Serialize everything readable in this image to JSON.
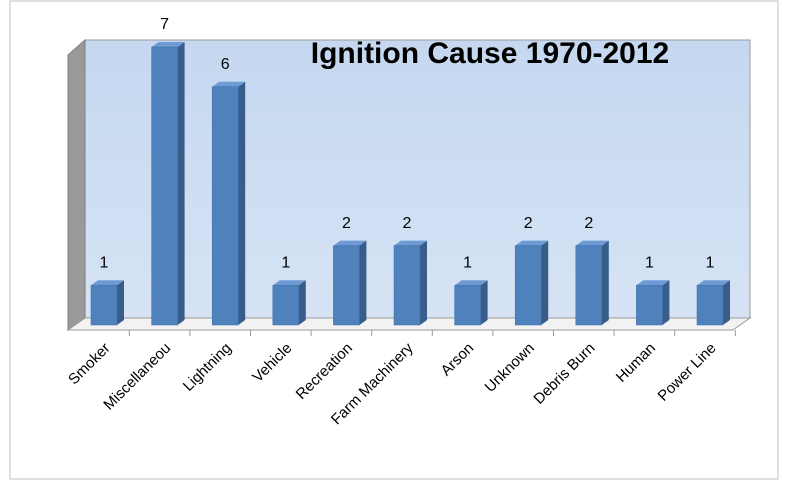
{
  "chart_data": {
    "type": "bar",
    "title": "Ignition Cause 1970-2012",
    "categories": [
      "Smoker",
      "Miscellaneou",
      "Lightning",
      "Vehicle",
      "Recreation",
      "Farm Machinery",
      "Arson",
      "Unknown",
      "Debris Burn",
      "Human",
      "Power Line"
    ],
    "values": [
      1,
      7,
      6,
      1,
      2,
      2,
      1,
      2,
      2,
      1,
      1
    ],
    "color": "#4f81bd",
    "ylim": [
      0,
      7
    ]
  }
}
